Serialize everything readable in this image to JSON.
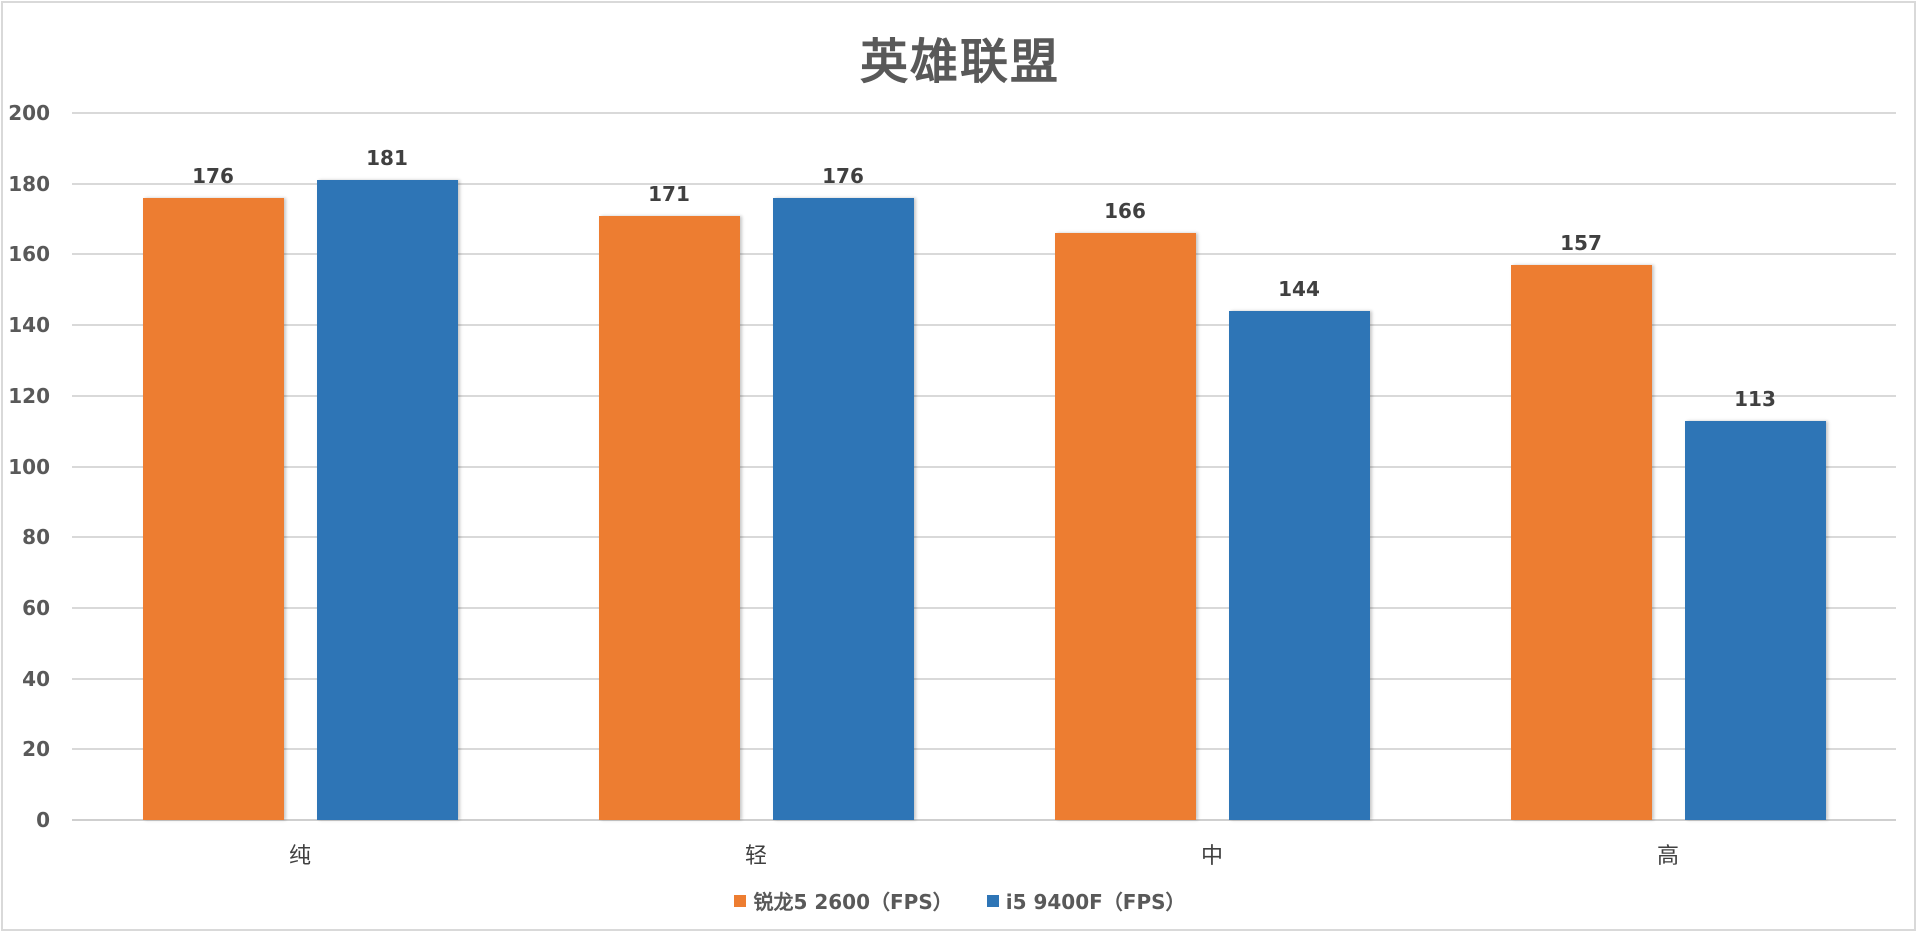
{
  "chart_data": {
    "type": "bar",
    "title": "英雄联盟",
    "xlabel": "",
    "ylabel": "",
    "categories": [
      "纯",
      "轻",
      "中",
      "高"
    ],
    "series": [
      {
        "name": "锐龙5 2600（FPS）",
        "color": "#ED7D31",
        "values": [
          176,
          171,
          166,
          157
        ]
      },
      {
        "name": "i5 9400F（FPS）",
        "color": "#2E75B6",
        "values": [
          181,
          176,
          144,
          113
        ]
      }
    ],
    "ylim": [
      0,
      200
    ],
    "yticks": [
      0,
      20,
      40,
      60,
      80,
      100,
      120,
      140,
      160,
      180,
      200
    ],
    "grid": true,
    "legend_position": "bottom",
    "data_labels": true
  },
  "ui": {
    "title": "英雄联盟",
    "legend": [
      "锐龙5 2600（FPS）",
      "i5 9400F（FPS）"
    ]
  }
}
